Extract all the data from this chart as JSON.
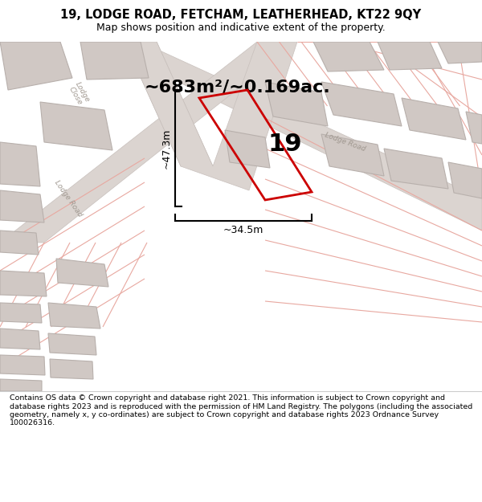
{
  "title_line1": "19, LODGE ROAD, FETCHAM, LEATHERHEAD, KT22 9QY",
  "title_line2": "Map shows position and indicative extent of the property.",
  "area_text": "~683m²/~0.169ac.",
  "property_number": "19",
  "dim_height": "~47.3m",
  "dim_width": "~34.5m",
  "footer_text": "Contains OS data © Crown copyright and database right 2021. This information is subject to Crown copyright and database rights 2023 and is reproduced with the permission of HM Land Registry. The polygons (including the associated geometry, namely x, y co-ordinates) are subject to Crown copyright and database rights 2023 Ordnance Survey 100026316.",
  "map_bg": "#ede8e4",
  "road_fill": "#dbd4d0",
  "road_edge": "#c8c0bc",
  "building_fill": "#d0c8c4",
  "building_edge": "#b8b0ac",
  "plot_red": "#cc0000",
  "pink_line": "#e8a8a0",
  "gray_line": "#c8c0bc",
  "text_gray": "#a09890",
  "white": "#ffffff",
  "black": "#000000"
}
